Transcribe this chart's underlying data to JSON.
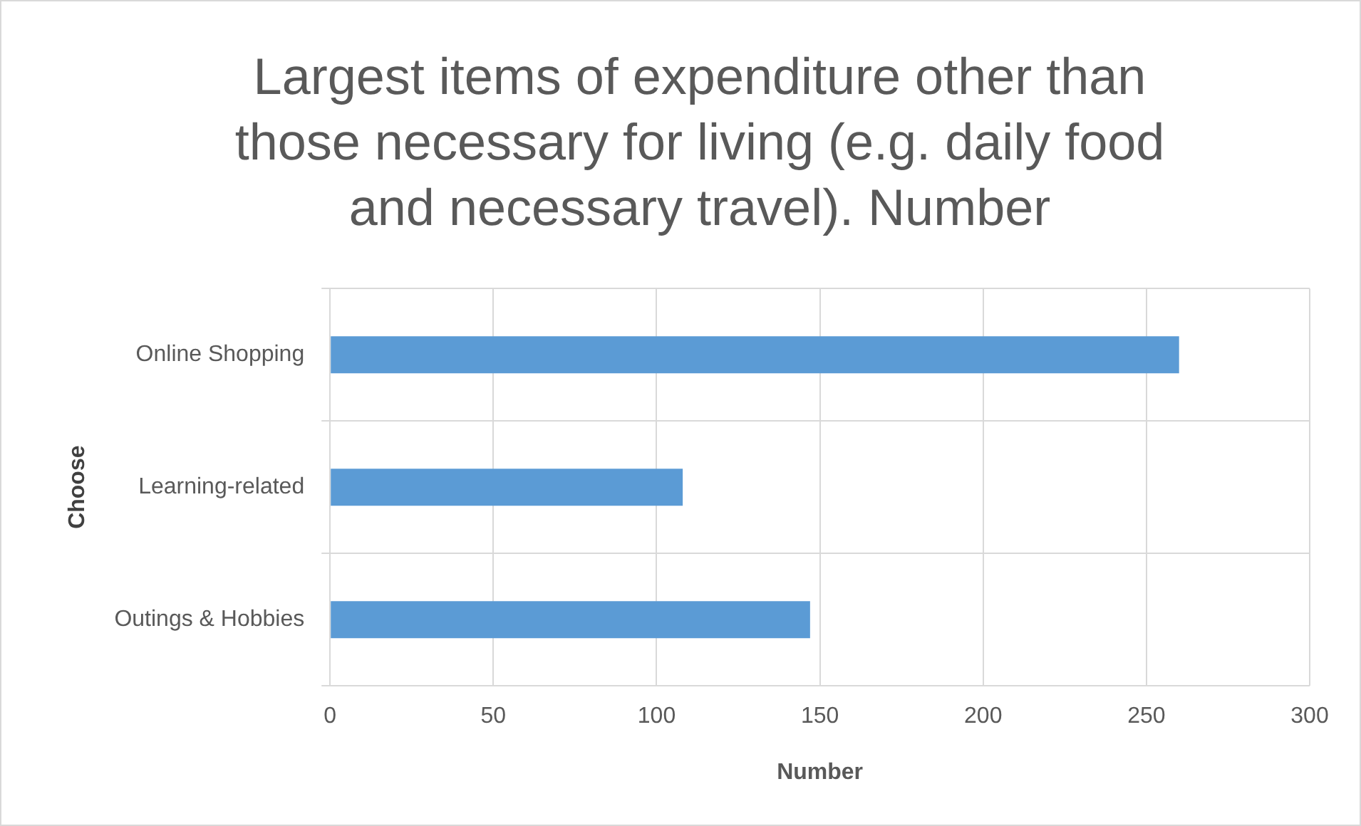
{
  "chart_data": {
    "type": "bar",
    "orientation": "horizontal",
    "title": "Largest items of expenditure other than those necessary for living (e.g. daily food and necessary travel). Number",
    "xlabel": "Number",
    "ylabel": "Choose",
    "categories": [
      "Online Shopping",
      "Learning-related",
      "Outings & Hobbies"
    ],
    "values": [
      260,
      108,
      147
    ],
    "color": "#5b9bd5",
    "xlim": [
      0,
      300
    ],
    "xticks": [
      0,
      50,
      100,
      150,
      200,
      250,
      300
    ],
    "grid": true
  }
}
